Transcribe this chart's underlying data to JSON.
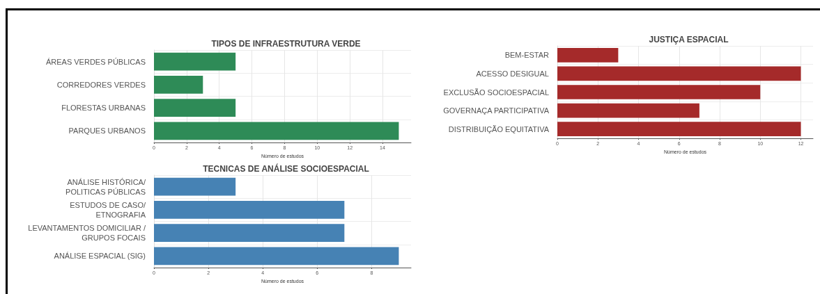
{
  "chart_data": [
    {
      "type": "bar",
      "orientation": "horizontal",
      "title": "TIPOS DE INFRAESTRUTURA VERDE",
      "xlabel": "Número de estudos",
      "categories": [
        "ÁREAS VERDES PÚBLICAS",
        "CORREDORES VERDES",
        "FLORESTAS URBANAS",
        "PARQUES URBANOS"
      ],
      "series": [
        {
          "color": "#2e8b57",
          "values": [
            5,
            3,
            5,
            15
          ]
        }
      ],
      "xlim": [
        0,
        15.75
      ],
      "xticks": [
        0,
        2,
        4,
        6,
        8,
        10,
        12,
        14
      ],
      "grid": true
    },
    {
      "type": "bar",
      "orientation": "horizontal",
      "title": "JUSTIÇA ESPACIAL",
      "xlabel": "Número de estudos",
      "categories": [
        "BEM-ESTAR",
        "ACESSO DESIGUAL",
        "EXCLUSÃO SOCIOESPACIAL",
        "GOVERNAÇA PARTICIPATIVA",
        "DISTRIBUIÇÃO EQUITATIVA"
      ],
      "series": [
        {
          "color": "#a52a2a",
          "values": [
            3,
            12,
            10,
            7,
            12
          ]
        }
      ],
      "xlim": [
        0,
        12.6
      ],
      "xticks": [
        0,
        2,
        4,
        6,
        8,
        10,
        12
      ],
      "grid": true
    },
    {
      "type": "bar",
      "orientation": "horizontal",
      "title": "TECNICAS DE ANÁLISE SOCIOESPACIAL",
      "xlabel": "Número de estudos",
      "categories": [
        "ANÁLISE HISTÓRICA/\nPOLITICAS PÚBLICAS",
        "ESTUDOS DE CASO/\nETNOGRAFIA",
        "LEVANTAMENTOS DOMICILIAR /\nGRUPOS FOCAIS",
        "ANÁLISE ESPACIAL (SIG)"
      ],
      "series": [
        {
          "color": "#4682b4",
          "values": [
            3,
            7,
            7,
            9
          ]
        }
      ],
      "xlim": [
        0,
        9.45
      ],
      "xticks": [
        0,
        2,
        4,
        6,
        8
      ],
      "grid": true
    }
  ]
}
